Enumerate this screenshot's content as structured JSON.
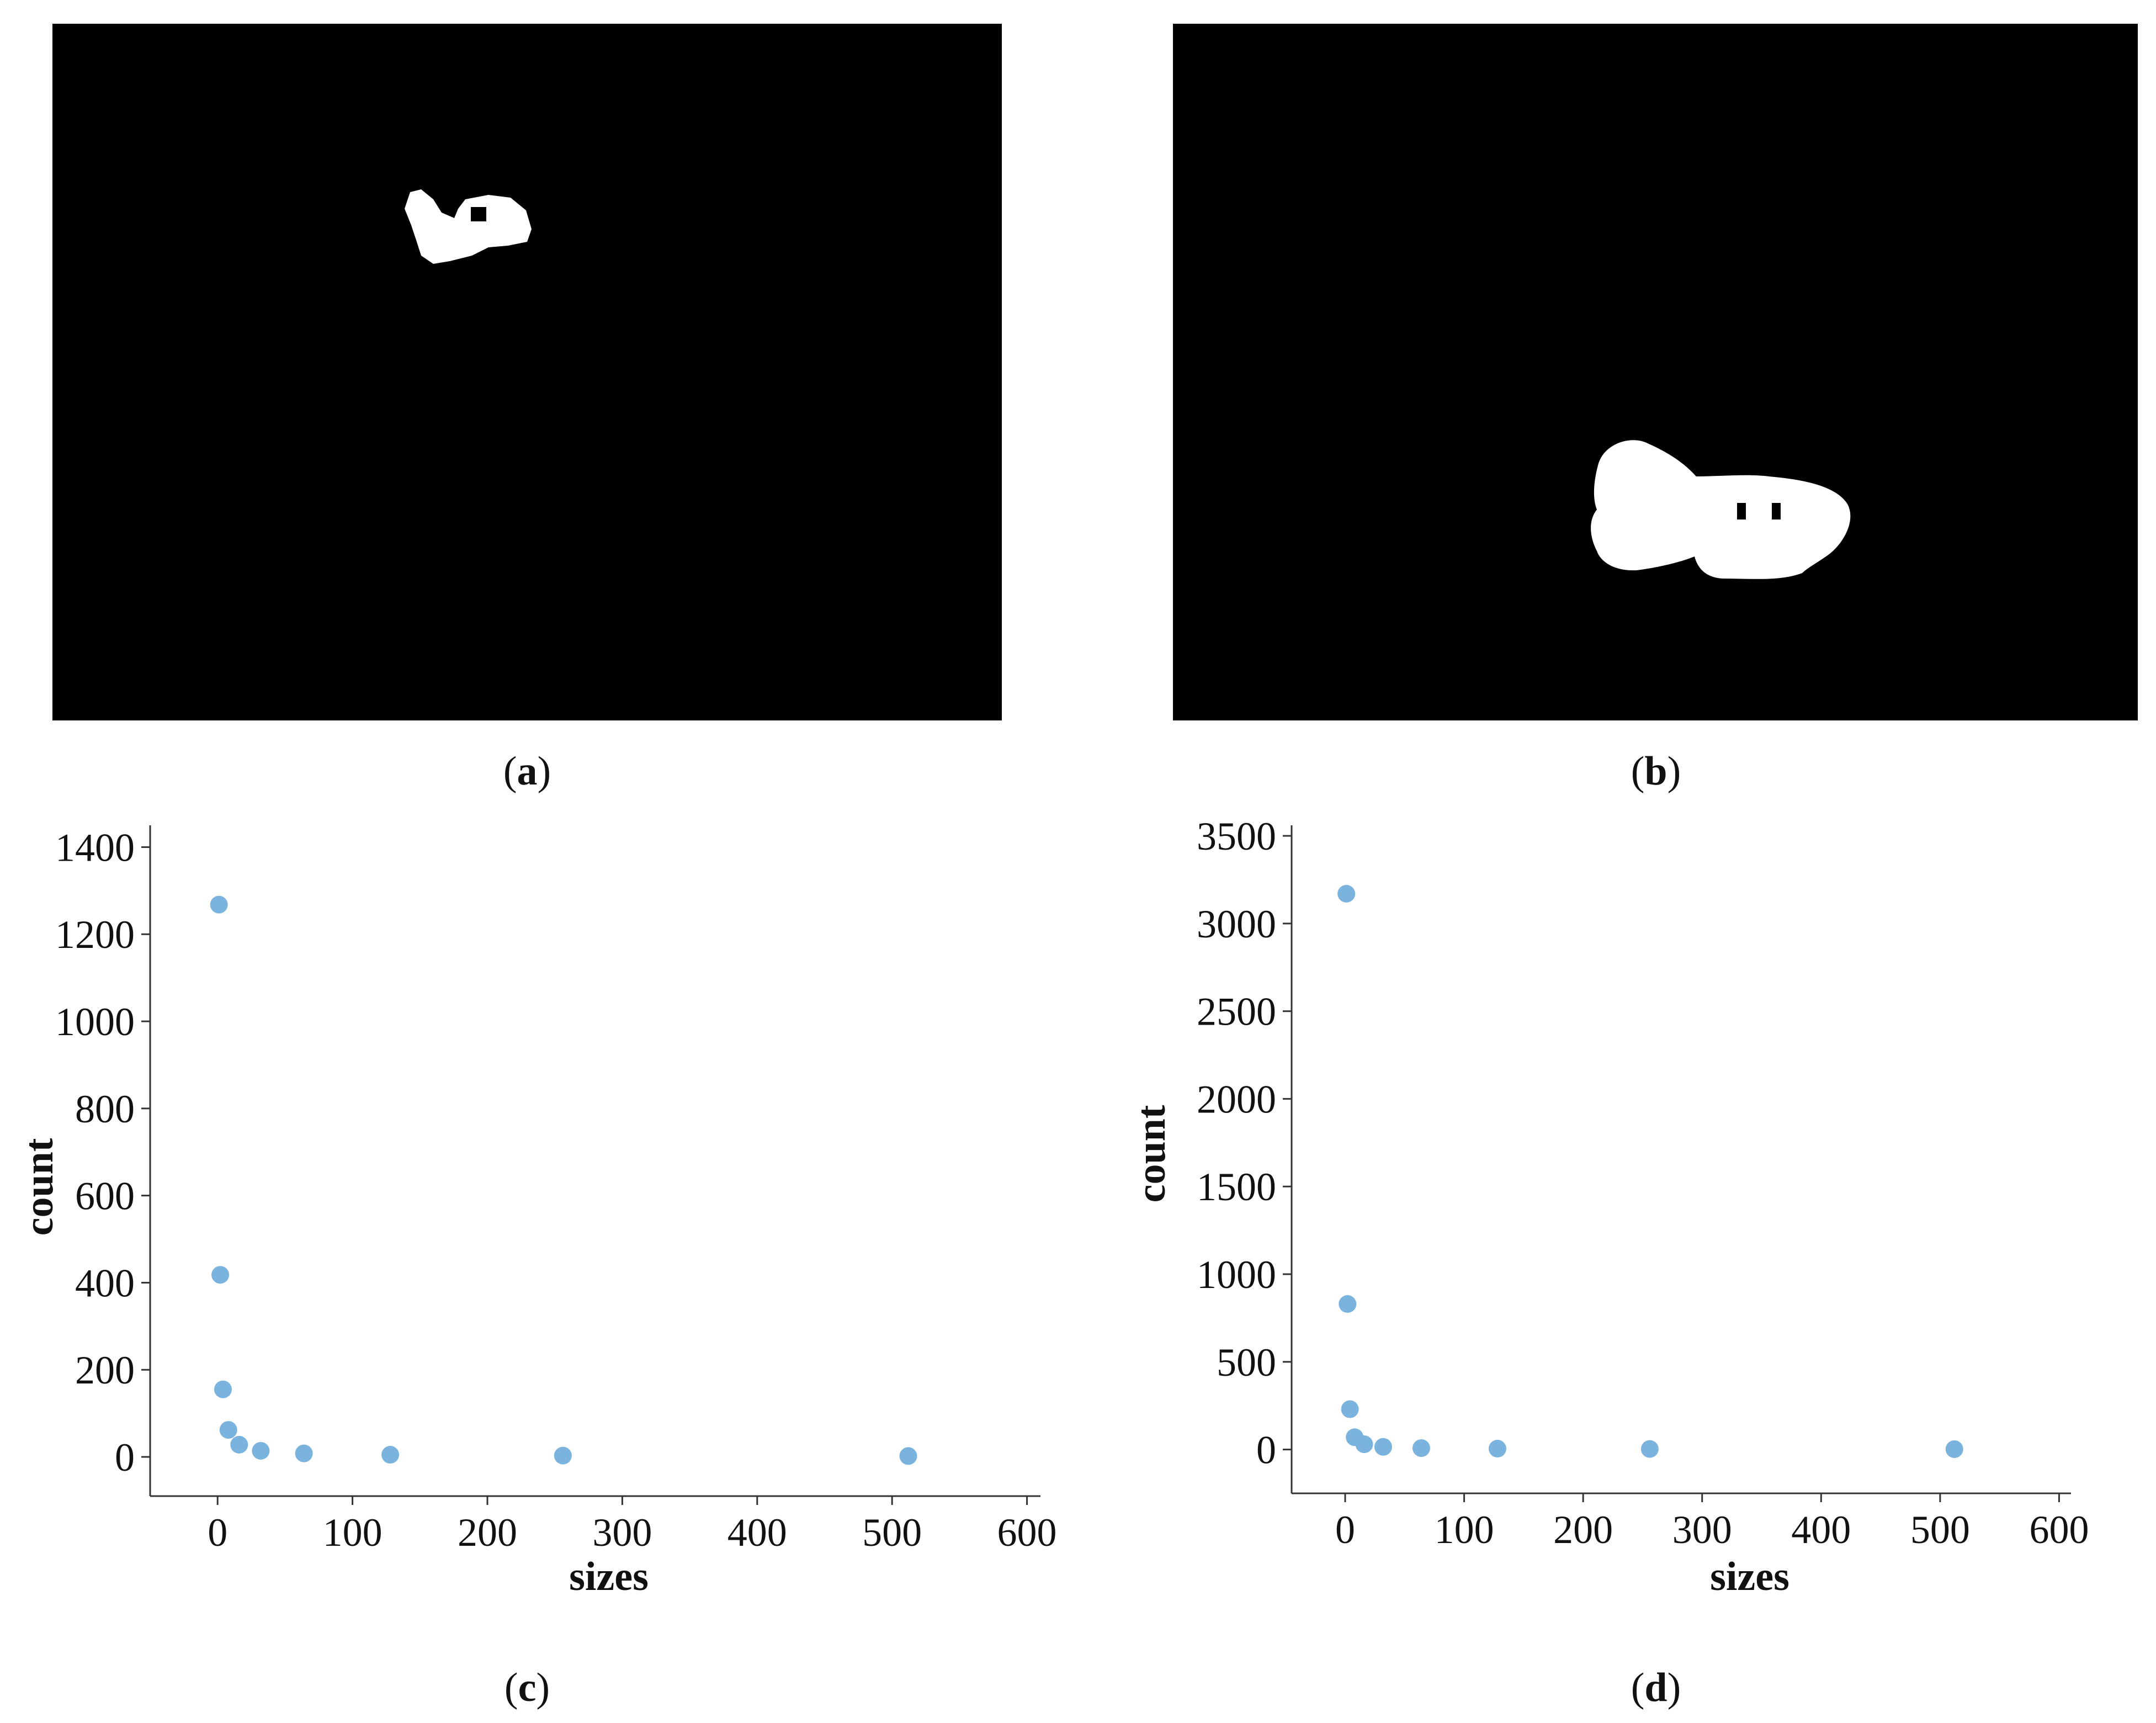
{
  "panels": {
    "a": {
      "caption_open": "(",
      "caption_letter": "a",
      "caption_close": ")"
    },
    "b": {
      "caption_open": "(",
      "caption_letter": "b",
      "caption_close": ")"
    },
    "c": {
      "caption_open": "(",
      "caption_letter": "c",
      "caption_close": ")"
    },
    "d": {
      "caption_open": "(",
      "caption_letter": "d",
      "caption_close": ")"
    }
  },
  "colors": {
    "point": "#7ab3dd",
    "axis": "#333333",
    "mask_bg": "#000000",
    "mask_fg": "#ffffff"
  },
  "chart_data": [
    {
      "type": "scatter",
      "panel": "c",
      "xlabel": "sizes",
      "ylabel": "count",
      "xlim": [
        -50,
        610
      ],
      "ylim": [
        -90,
        1450
      ],
      "xticks": [
        0,
        100,
        200,
        300,
        400,
        500,
        600
      ],
      "yticks": [
        0,
        200,
        400,
        600,
        800,
        1000,
        1200,
        1400
      ],
      "grid": false,
      "legend": "none",
      "x": [
        1,
        2,
        4,
        8,
        16,
        32,
        64,
        128,
        256,
        512
      ],
      "y": [
        1268,
        418,
        155,
        62,
        28,
        14,
        8,
        5,
        3,
        2
      ]
    },
    {
      "type": "scatter",
      "panel": "d",
      "xlabel": "sizes",
      "ylabel": "count",
      "xlim": [
        -45,
        610
      ],
      "ylim": [
        -250,
        3560
      ],
      "xticks": [
        0,
        100,
        200,
        300,
        400,
        500,
        600
      ],
      "yticks": [
        0,
        500,
        1000,
        1500,
        2000,
        2500,
        3000,
        3500
      ],
      "grid": false,
      "legend": "none",
      "x": [
        1,
        2,
        4,
        8,
        16,
        32,
        64,
        128,
        256,
        512
      ],
      "y": [
        3170,
        830,
        230,
        70,
        30,
        15,
        8,
        5,
        3,
        2
      ]
    }
  ]
}
